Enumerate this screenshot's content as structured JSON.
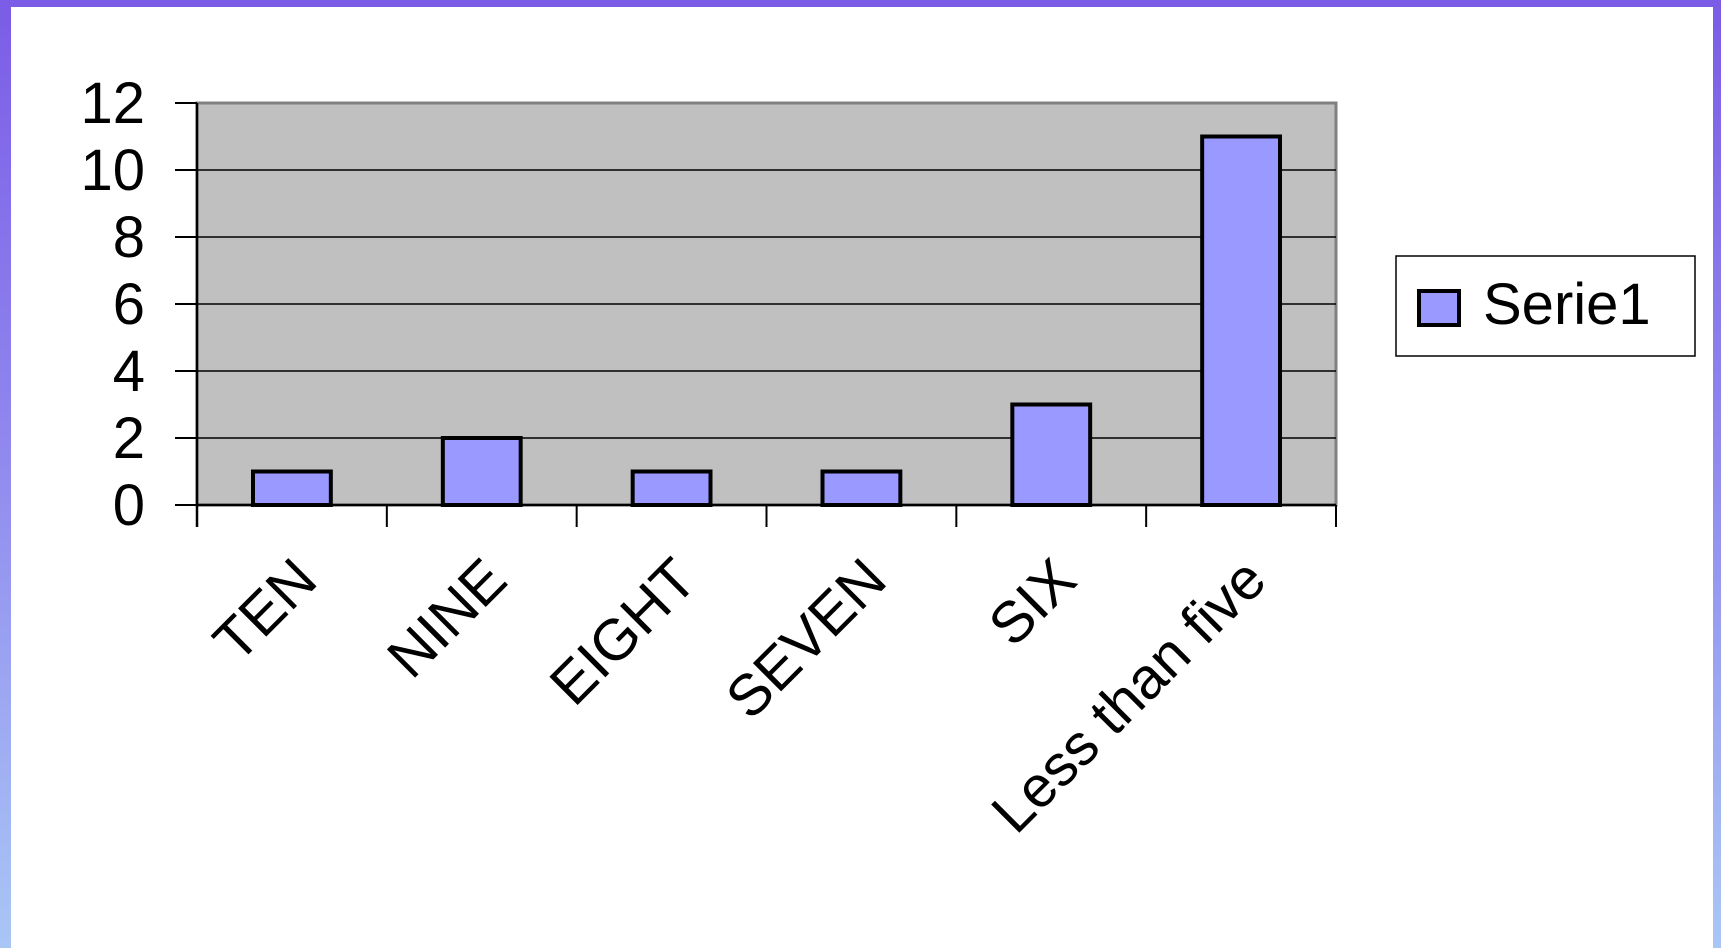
{
  "chart_data": {
    "type": "bar",
    "categories": [
      "TEN",
      "NINE",
      "EIGHT",
      "SEVEN",
      "SIX",
      "Less than five"
    ],
    "series": [
      {
        "name": "Serie1",
        "values": [
          1,
          2,
          1,
          1,
          3,
          11
        ]
      }
    ],
    "title": "",
    "xlabel": "",
    "ylabel": "",
    "ylim": [
      0,
      12
    ],
    "yticks": [
      "0",
      "2",
      "4",
      "6",
      "8",
      "10",
      "12"
    ],
    "grid": true,
    "legend_position": "right",
    "colors": {
      "plot_background": "#c0c0c0",
      "bar_fill": "#9999ff",
      "bar_stroke": "#000000",
      "frame_border": "#808080"
    }
  }
}
